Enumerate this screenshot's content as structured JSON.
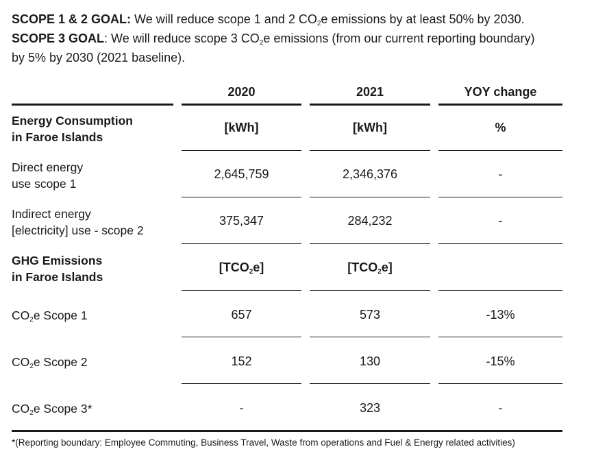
{
  "goals": {
    "scope12_label": "SCOPE 1 & 2 GOAL:",
    "scope12_pre": " We will reduce scope 1 and 2 CO",
    "scope12_sub": "2",
    "scope12_post": "e emissions by at least 50% by 2030.",
    "scope3_label": "SCOPE 3 GOAL",
    "scope3_pre": ": We will reduce scope 3 CO",
    "scope3_sub": "2",
    "scope3_post": "e emissions (from our current reporting boundary)",
    "scope3_line2": "by 5% by 2030 (2021 baseline)."
  },
  "table": {
    "headers": [
      "2020",
      "2021",
      "YOY change"
    ],
    "energy_section": {
      "label_line1": "Energy Consumption",
      "label_line2": "in Faroe Islands",
      "units": [
        "[kWh]",
        "[kWh]",
        "%"
      ]
    },
    "energy_rows": [
      {
        "label_line1": "Direct energy",
        "label_line2": "use scope 1",
        "values": [
          "2,645,759",
          "2,346,376",
          "-"
        ]
      },
      {
        "label_line1": "Indirect energy",
        "label_line2": "[electricity] use - scope 2",
        "values": [
          "375,347",
          "284,232",
          "-"
        ]
      }
    ],
    "ghg_section": {
      "label_line1": "GHG Emissions",
      "label_line2": "in Faroe Islands",
      "unit_pre": "[TCO",
      "unit_sub": "2",
      "unit_post": "e]"
    },
    "ghg_rows": [
      {
        "prefix": "CO",
        "sub": "2",
        "suffix": "e Scope 1",
        "values": [
          "657",
          "573",
          "-13%"
        ]
      },
      {
        "prefix": "CO",
        "sub": "2",
        "suffix": "e Scope 2",
        "values": [
          "152",
          "130",
          "-15%"
        ]
      },
      {
        "prefix": "CO",
        "sub": "2",
        "suffix": "e Scope 3*",
        "values": [
          "-",
          "323",
          "-"
        ]
      }
    ]
  },
  "footnote": "*(Reporting boundary: Employee Commuting, Business Travel, Waste from operations and Fuel & Energy related activities)"
}
